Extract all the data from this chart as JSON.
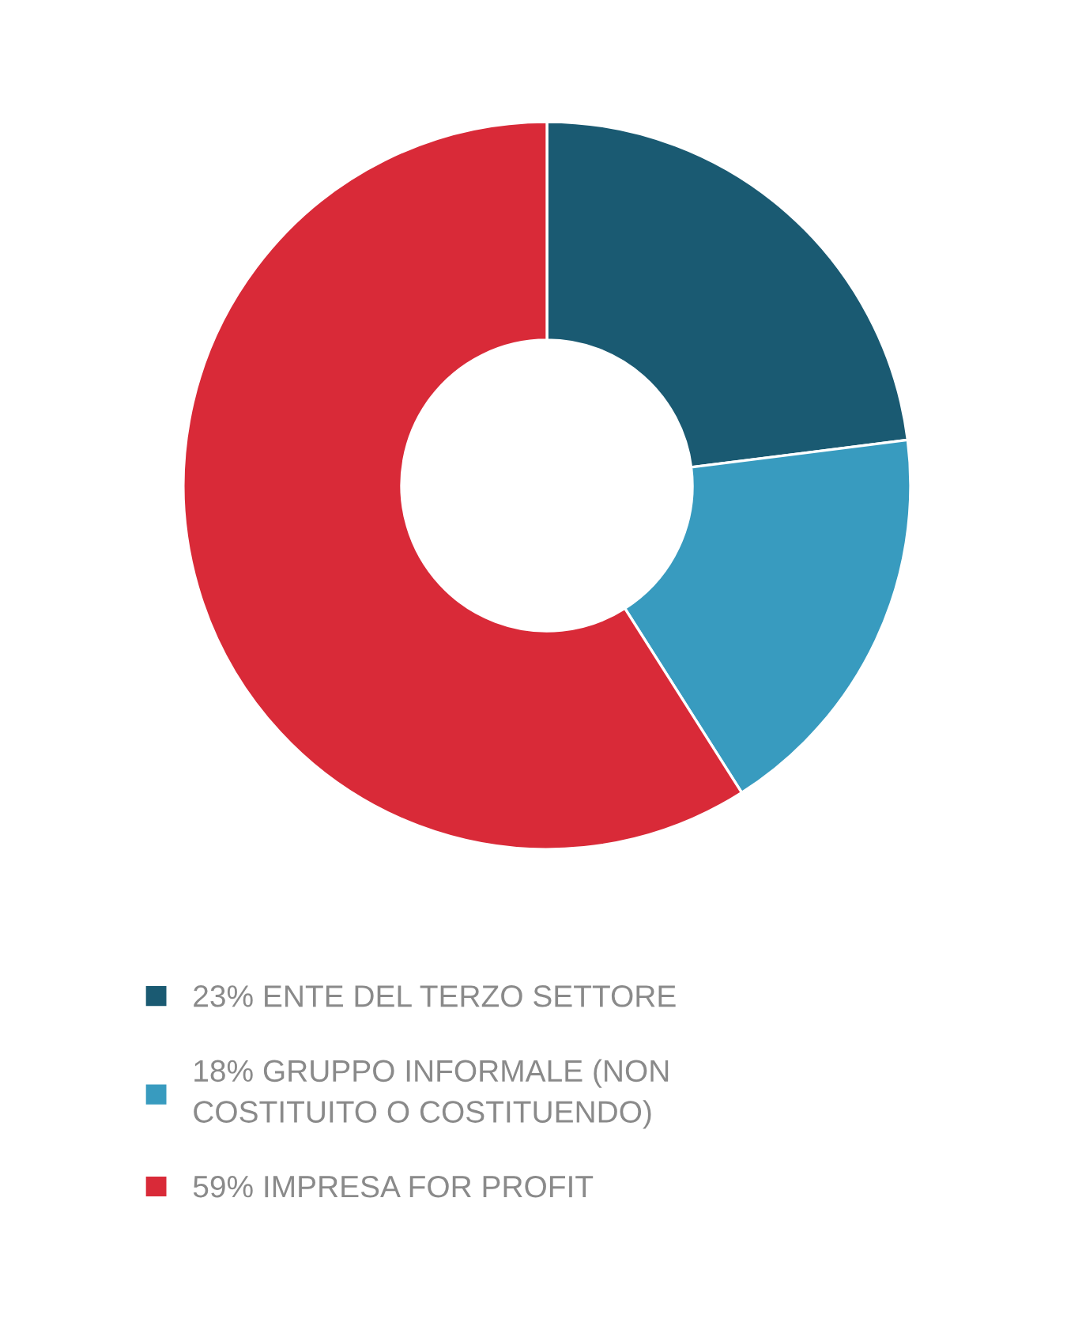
{
  "chart_data": {
    "type": "donut",
    "categories": [
      "ENTE DEL TERZO SETTORE",
      "GRUPPO INFORMALE (NON\nCOSTITUITO O COSTITUENDO)",
      "IMPRESA FOR PROFIT"
    ],
    "values": [
      23,
      18,
      59
    ],
    "colors": [
      "#1a5a72",
      "#389bbf",
      "#d92a38"
    ],
    "value_labels": [
      "23%",
      "18%",
      "59%"
    ],
    "legend": "bottom"
  }
}
